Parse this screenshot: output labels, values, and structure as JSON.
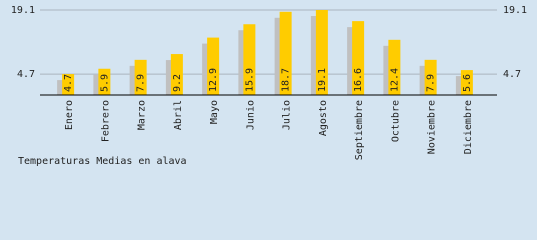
{
  "chart_data": {
    "type": "bar",
    "title": "Temperaturas Medias en alava",
    "categories": [
      "Enero",
      "Febrero",
      "Marzo",
      "Abril",
      "Mayo",
      "Junio",
      "Julio",
      "Agosto",
      "Septiembre",
      "Octubre",
      "Noviembre",
      "Diciembre"
    ],
    "values": [
      4.7,
      5.9,
      7.9,
      9.2,
      12.9,
      15.9,
      18.7,
      19.1,
      16.6,
      12.4,
      7.9,
      5.6
    ],
    "color": "#ffcc00",
    "shadow_color": "#c0c0c0",
    "ylim": [
      0,
      19.1
    ],
    "yticks": [
      4.7,
      19.1
    ],
    "grid": true
  }
}
